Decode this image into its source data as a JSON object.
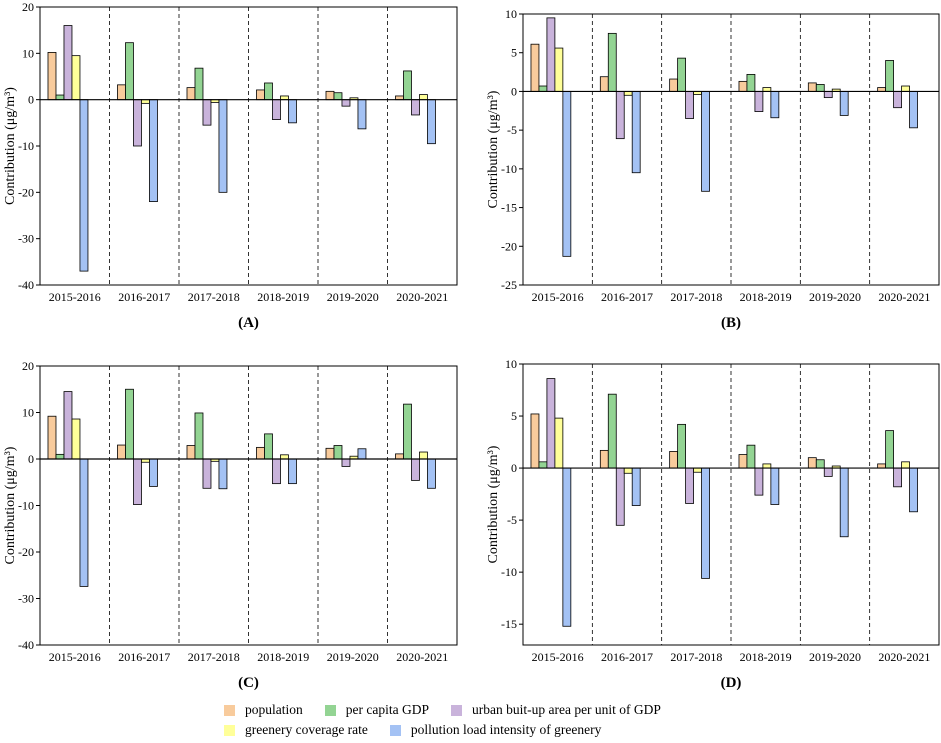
{
  "legend": {
    "population": "population",
    "gdp": "per capita GDP",
    "urban": "urban buit-up area per unit of GDP",
    "greenery": "greenery coverage rate",
    "pollution": "pollution load intensity of greenery"
  },
  "colors": {
    "population": "#F8CB9C",
    "gdp": "#93D493",
    "urban": "#C9B3DB",
    "greenery": "#FFFF99",
    "pollution": "#A4C2F4"
  },
  "chart_data": [
    {
      "type": "bar",
      "panel_label": "(A)",
      "ylabel": "Contribution (μg/m³)",
      "ylim": [
        -40,
        20
      ],
      "yticks": [
        "20",
        "10",
        "0",
        "-10",
        "-20",
        "-30",
        "-40"
      ],
      "categories": [
        "2015-2016",
        "2016-2017",
        "2017-2018",
        "2018-2019",
        "2019-2020",
        "2020-2021"
      ],
      "series": [
        {
          "name": "population",
          "values": [
            10.2,
            3.2,
            2.6,
            2.1,
            1.8,
            0.8
          ]
        },
        {
          "name": "per capita GDP",
          "values": [
            1.0,
            12.3,
            6.8,
            3.6,
            1.5,
            6.2
          ]
        },
        {
          "name": "urban buit-up area per unit of GDP",
          "values": [
            16.0,
            -10.0,
            -5.5,
            -4.3,
            -1.4,
            -3.3
          ]
        },
        {
          "name": "greenery coverage rate",
          "values": [
            9.5,
            -0.8,
            -0.6,
            0.8,
            0.4,
            1.1
          ]
        },
        {
          "name": "pollution load intensity of greenery",
          "values": [
            -37.0,
            -22.0,
            -20.0,
            -5.0,
            -6.3,
            -9.5
          ]
        }
      ]
    },
    {
      "type": "bar",
      "panel_label": "(B)",
      "ylabel": "Contribution (μg/m³)",
      "ylim": [
        -25,
        10
      ],
      "yticks": [
        "10",
        "5",
        "0",
        "-5",
        "-10",
        "-15",
        "-20",
        "-25"
      ],
      "categories": [
        "2015-2016",
        "2016-2017",
        "2017-2018",
        "2018-2019",
        "2019-2020",
        "2020-2021"
      ],
      "series": [
        {
          "name": "population",
          "values": [
            6.1,
            1.9,
            1.6,
            1.3,
            1.1,
            0.5
          ]
        },
        {
          "name": "per capita GDP",
          "values": [
            0.7,
            7.5,
            4.3,
            2.2,
            0.9,
            4.0
          ]
        },
        {
          "name": "urban buit-up area per unit of GDP",
          "values": [
            9.5,
            -6.1,
            -3.5,
            -2.6,
            -0.8,
            -2.1
          ]
        },
        {
          "name": "greenery coverage rate",
          "values": [
            5.6,
            -0.5,
            -0.4,
            0.5,
            0.3,
            0.7
          ]
        },
        {
          "name": "pollution load intensity of greenery",
          "values": [
            -21.3,
            -10.5,
            -12.9,
            -3.4,
            -3.1,
            -4.7
          ]
        }
      ]
    },
    {
      "type": "bar",
      "panel_label": "(C)",
      "ylabel": "Contribution (μg/m³)",
      "ylim": [
        -40,
        20
      ],
      "yticks": [
        "20",
        "10",
        "0",
        "-10",
        "-20",
        "-30",
        "-40"
      ],
      "categories": [
        "2015-2016",
        "2016-2017",
        "2017-2018",
        "2018-2019",
        "2019-2020",
        "2020-2021"
      ],
      "series": [
        {
          "name": "population",
          "values": [
            9.2,
            3.0,
            2.9,
            2.5,
            2.3,
            1.1
          ]
        },
        {
          "name": "per capita GDP",
          "values": [
            1.0,
            15.0,
            9.9,
            5.4,
            2.9,
            11.8
          ]
        },
        {
          "name": "urban buit-up area per unit of GDP",
          "values": [
            14.5,
            -9.8,
            -6.3,
            -5.3,
            -1.6,
            -4.6
          ]
        },
        {
          "name": "greenery coverage rate",
          "values": [
            8.6,
            -0.7,
            -0.5,
            0.9,
            0.6,
            1.5
          ]
        },
        {
          "name": "pollution load intensity of greenery",
          "values": [
            -27.4,
            -5.9,
            -6.4,
            -5.3,
            2.2,
            -6.3
          ]
        }
      ]
    },
    {
      "type": "bar",
      "panel_label": "(D)",
      "ylabel": "Contribution (μg/m³)",
      "ylim": [
        -17,
        10
      ],
      "yticks": [
        "10",
        "5",
        "0",
        "-5",
        "-10",
        "-15"
      ],
      "categories": [
        "2015-2016",
        "2016-2017",
        "2017-2018",
        "2018-2019",
        "2019-2020",
        "2020-2021"
      ],
      "series": [
        {
          "name": "population",
          "values": [
            5.2,
            1.7,
            1.6,
            1.3,
            1.0,
            0.4
          ]
        },
        {
          "name": "per capita GDP",
          "values": [
            0.6,
            7.1,
            4.2,
            2.2,
            0.8,
            3.6
          ]
        },
        {
          "name": "urban buit-up area per unit of GDP",
          "values": [
            8.6,
            -5.5,
            -3.4,
            -2.6,
            -0.8,
            -1.8
          ]
        },
        {
          "name": "greenery coverage rate",
          "values": [
            4.8,
            -0.5,
            -0.4,
            0.4,
            0.2,
            0.6
          ]
        },
        {
          "name": "pollution load intensity of greenery",
          "values": [
            -15.2,
            -3.6,
            -10.6,
            -3.5,
            -6.6,
            -4.2
          ]
        }
      ]
    }
  ]
}
